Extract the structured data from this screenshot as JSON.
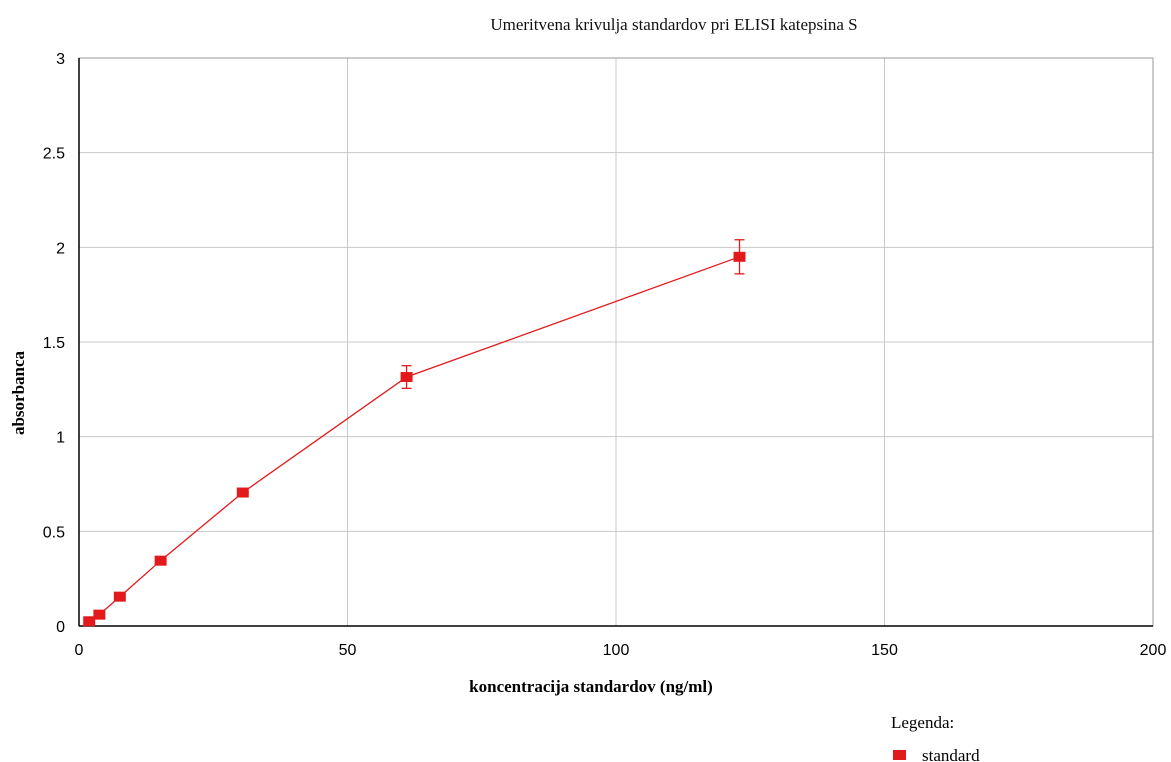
{
  "chart_data": {
    "type": "line",
    "title": "Umeritvena krivulja standardov pri ELISI katepsina S",
    "xlabel": "koncentracija standardov (ng/ml)",
    "ylabel": "absorbanca",
    "xlim": [
      0,
      200
    ],
    "ylim": [
      0,
      3
    ],
    "xticks": [
      "0",
      "50",
      "100",
      "150",
      "200"
    ],
    "yticks": [
      "0",
      "0.5",
      "1",
      "1.5",
      "2",
      "2.5",
      "3"
    ],
    "grid": true,
    "legend": {
      "title": "Legenda:",
      "placement": "bottom-right"
    },
    "colors": {
      "series": "#e31a1c",
      "grid": "#c8c8c8",
      "axis": "#000000"
    },
    "series": [
      {
        "name": "standard",
        "x": [
          1.9,
          3.8,
          7.6,
          15.2,
          30.5,
          61,
          123
        ],
        "y": [
          0.025,
          0.06,
          0.155,
          0.345,
          0.705,
          1.315,
          1.95
        ],
        "error": [
          0,
          0,
          0,
          0,
          0,
          0.06,
          0.09
        ]
      }
    ]
  }
}
